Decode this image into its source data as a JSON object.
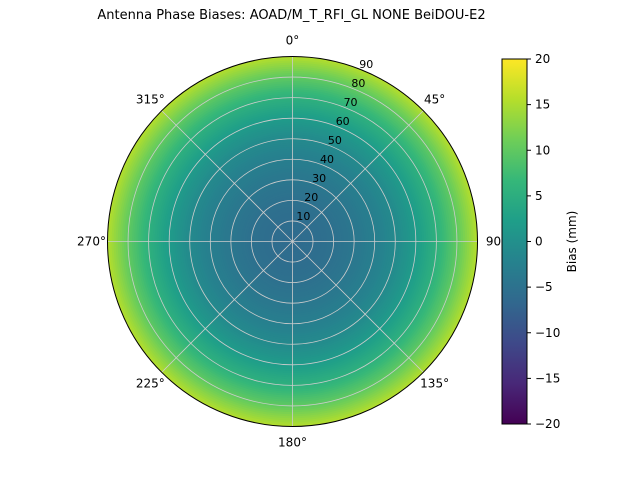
{
  "figure": {
    "background": "#ffffff"
  },
  "chart_data": {
    "type": "heatmap",
    "projection": "polar",
    "title": "Antenna Phase Biases: AOAD/M_T_RFI_GL NONE BeiDOU-E2",
    "angular_ticks": [
      "0°",
      "45°",
      "90",
      "135°",
      "180°",
      "225°",
      "270°",
      "315°"
    ],
    "angular_tick_degrees": [
      0,
      45,
      90,
      135,
      180,
      225,
      270,
      315
    ],
    "radial_ticks": [
      10,
      20,
      30,
      40,
      50,
      60,
      70,
      80,
      90
    ],
    "radial_range": [
      0,
      90
    ],
    "radial_label_azimuth_deg": 22.5,
    "grid": true,
    "grid_color": "#cccccc",
    "outline_color": "#000000",
    "colorbar": {
      "label": "Bias (mm)",
      "ticks": [
        20,
        15,
        10,
        5,
        0,
        -5,
        -10,
        -15,
        -20
      ],
      "range": [
        -20,
        20
      ],
      "colormap": "viridis",
      "colormap_stops": [
        "#440154",
        "#482878",
        "#3e4989",
        "#31688e",
        "#26828e",
        "#1f9e89",
        "#35b779",
        "#6ece58",
        "#b5de2b",
        "#fde725"
      ]
    },
    "radial_profile": {
      "zenith_deg": [
        0,
        10,
        20,
        30,
        40,
        50,
        60,
        70,
        80,
        90
      ],
      "bias_mm": [
        -6,
        -5.8,
        -5.2,
        -4.2,
        -2.8,
        -1,
        1.8,
        5.5,
        10,
        15.5
      ]
    }
  }
}
